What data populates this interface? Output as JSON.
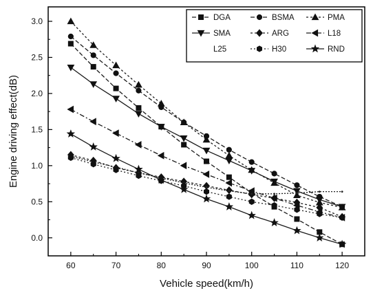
{
  "chart_data": {
    "type": "line",
    "title": "",
    "xlabel": "Vehicle speed(km/h)",
    "ylabel": "Engine driving effect(dB)",
    "xlim": [
      55,
      125
    ],
    "ylim": [
      -0.25,
      3.2
    ],
    "xticks": [
      "60",
      "70",
      "80",
      "90",
      "100",
      "110",
      "120"
    ],
    "yticks": [
      "0.0",
      "0.5",
      "1.0",
      "1.5",
      "2.0",
      "2.5",
      "3.0"
    ],
    "x": [
      60,
      65,
      70,
      75,
      80,
      85,
      90,
      95,
      100,
      105,
      110,
      115,
      120
    ],
    "legend_position": "top-right",
    "grid": false,
    "series": [
      {
        "name": "DGA",
        "marker": "square",
        "dash": "6,3",
        "values": [
          2.69,
          2.37,
          2.07,
          1.8,
          1.54,
          1.29,
          1.06,
          0.84,
          0.62,
          0.43,
          0.26,
          0.08,
          -0.09
        ]
      },
      {
        "name": "BSMA",
        "marker": "circle",
        "dash": "6,3",
        "values": [
          2.79,
          2.53,
          2.28,
          2.04,
          1.81,
          1.6,
          1.41,
          1.22,
          1.05,
          0.89,
          0.73,
          0.57,
          0.43
        ]
      },
      {
        "name": "PMA",
        "marker": "triangle-up",
        "dash": "3,3",
        "values": [
          3.0,
          2.67,
          2.39,
          2.12,
          1.86,
          1.6,
          1.36,
          1.14,
          0.94,
          0.76,
          0.59,
          0.49,
          0.42
        ]
      },
      {
        "name": "SMA",
        "marker": "triangle-down",
        "dash": "",
        "values": [
          2.36,
          2.13,
          1.93,
          1.72,
          1.54,
          1.38,
          1.21,
          1.07,
          0.93,
          0.78,
          0.65,
          0.53,
          0.43
        ]
      },
      {
        "name": "ARG",
        "marker": "diamond",
        "dash": "3,3",
        "values": [
          1.15,
          1.07,
          0.97,
          0.9,
          0.84,
          0.78,
          0.72,
          0.66,
          0.6,
          0.55,
          0.49,
          0.42,
          0.29
        ]
      },
      {
        "name": "L18",
        "marker": "triangle-left",
        "dash": "7,3,2,3",
        "values": [
          1.78,
          1.61,
          1.45,
          1.29,
          1.14,
          1.0,
          0.88,
          0.76,
          0.65,
          0.55,
          0.45,
          0.36,
          0.28
        ]
      },
      {
        "name": "L25",
        "marker": "none",
        "dash": "2,2",
        "values": [
          1.13,
          1.05,
          0.98,
          0.9,
          0.83,
          0.76,
          0.7,
          0.65,
          0.61,
          0.61,
          0.62,
          0.64,
          0.64
        ]
      },
      {
        "name": "H30",
        "marker": "hexagon",
        "dash": "2,3",
        "values": [
          1.11,
          1.02,
          0.94,
          0.86,
          0.79,
          0.72,
          0.64,
          0.57,
          0.5,
          0.45,
          0.39,
          0.33,
          0.28
        ]
      },
      {
        "name": "RND",
        "marker": "star",
        "dash": "",
        "values": [
          1.44,
          1.26,
          1.1,
          0.95,
          0.8,
          0.67,
          0.54,
          0.43,
          0.31,
          0.21,
          0.1,
          0.0,
          -0.09
        ]
      }
    ]
  }
}
